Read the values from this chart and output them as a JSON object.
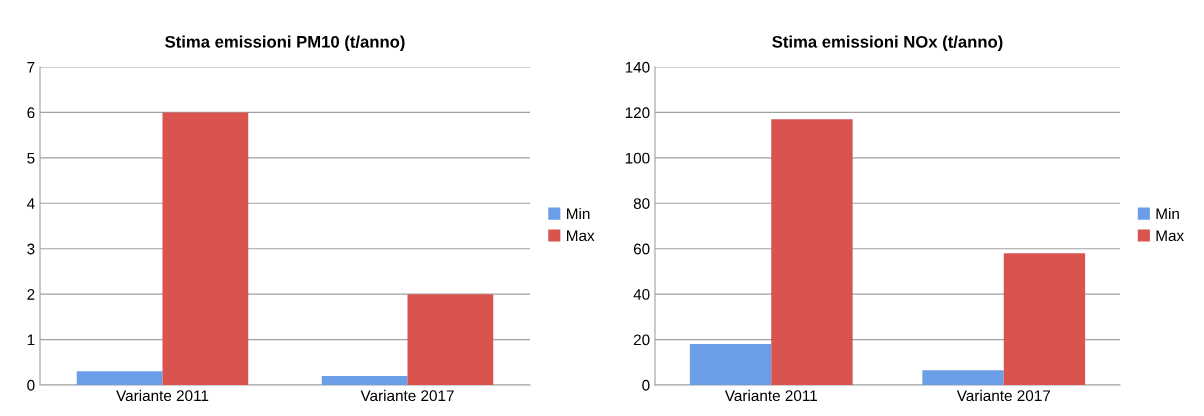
{
  "chart_data": [
    {
      "type": "bar",
      "title": "Stima emissioni PM10 (t/anno)",
      "categories": [
        "Variante 2011",
        "Variante 2017"
      ],
      "series": [
        {
          "name": "Min",
          "color": "#6a9ee6",
          "values": [
            0.3,
            0.2
          ]
        },
        {
          "name": "Max",
          "color": "#d9534f",
          "values": [
            6,
            2
          ]
        }
      ],
      "ylim": [
        0,
        7
      ],
      "yticks": [
        0,
        1,
        2,
        3,
        4,
        5,
        6,
        7
      ],
      "grid": "y",
      "legend": "right"
    },
    {
      "type": "bar",
      "title": "Stima emissioni NOx (t/anno)",
      "categories": [
        "Variante 2011",
        "Variante 2017"
      ],
      "series": [
        {
          "name": "Min",
          "color": "#6a9ee6",
          "values": [
            18,
            6.5
          ]
        },
        {
          "name": "Max",
          "color": "#d9534f",
          "values": [
            117,
            58
          ]
        }
      ],
      "ylim": [
        0,
        140
      ],
      "yticks": [
        0,
        20,
        40,
        60,
        80,
        100,
        120,
        140
      ],
      "grid": "y",
      "legend": "right"
    }
  ]
}
